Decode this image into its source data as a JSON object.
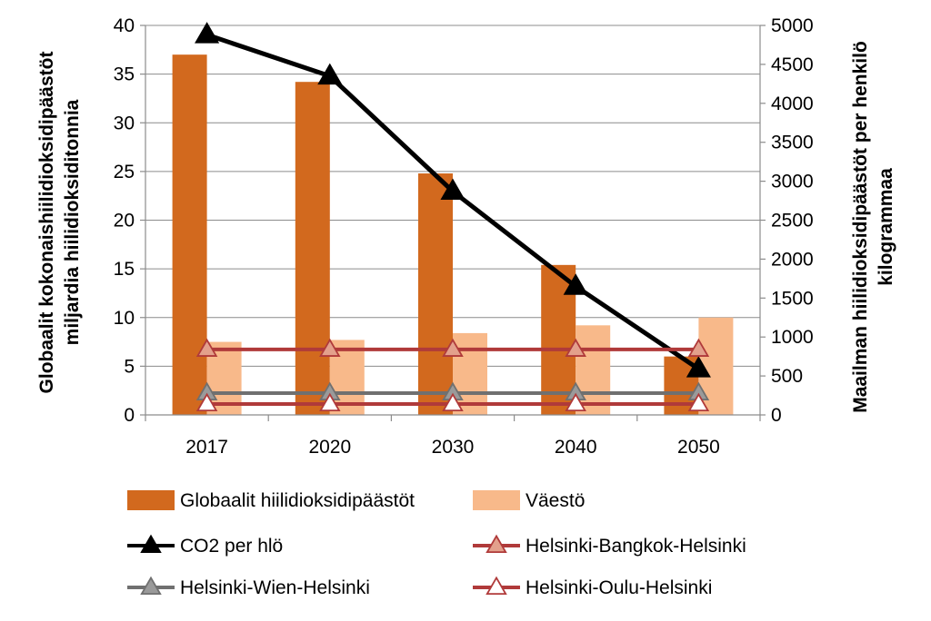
{
  "chart_data": {
    "type": "bar",
    "categories": [
      "2017",
      "2020",
      "2030",
      "2040",
      "2050"
    ],
    "y_left": {
      "label_line1": "Globaalit kokonaishiilidioksidipäästöt",
      "label_line2": "miljardia hiilidioksiditonnia",
      "lim": [
        0,
        40
      ],
      "ticks": [
        "0",
        "5",
        "10",
        "15",
        "20",
        "25",
        "30",
        "35",
        "40"
      ]
    },
    "y_right": {
      "label_line1": "Maailman hiilidioksidipäästöt per henkilö",
      "label_line2": "kilogrammaa",
      "lim": [
        0,
        5000
      ],
      "ticks": [
        "0",
        "500",
        "1000",
        "1500",
        "2000",
        "2500",
        "3000",
        "3500",
        "4000",
        "4500",
        "5000"
      ]
    },
    "grid": true,
    "legend_position": "bottom",
    "series": [
      {
        "name": "Globaalit hiilidioksidipäästöt",
        "kind": "bar",
        "axis": "left",
        "color": "#d2691e",
        "values": [
          37,
          34.2,
          24.8,
          15.4,
          6
        ]
      },
      {
        "name": "Väestö",
        "kind": "bar",
        "axis": "left",
        "color": "#f8b98a",
        "values": [
          7.5,
          7.7,
          8.4,
          9.2,
          10
        ]
      },
      {
        "name": "CO2 per hlö",
        "kind": "line",
        "axis": "right",
        "color": "#000000",
        "marker_fill": "#000000",
        "values": [
          4880,
          4350,
          2870,
          1650,
          590
        ]
      },
      {
        "name": "Helsinki-Bangkok-Helsinki",
        "kind": "line",
        "axis": "right",
        "color": "#b03a3a",
        "marker_fill": "#e3a08c",
        "values": [
          840,
          840,
          840,
          840,
          840
        ]
      },
      {
        "name": "Helsinki-Wien-Helsinki",
        "kind": "line",
        "axis": "right",
        "color": "#707070",
        "marker_fill": "#9a9a9a",
        "values": [
          280,
          280,
          280,
          280,
          280
        ]
      },
      {
        "name": "Helsinki-Oulu-Helsinki",
        "kind": "line",
        "axis": "right",
        "color": "#b03a3a",
        "marker_fill": "#ffffff",
        "values": [
          140,
          140,
          140,
          140,
          140
        ]
      }
    ]
  }
}
